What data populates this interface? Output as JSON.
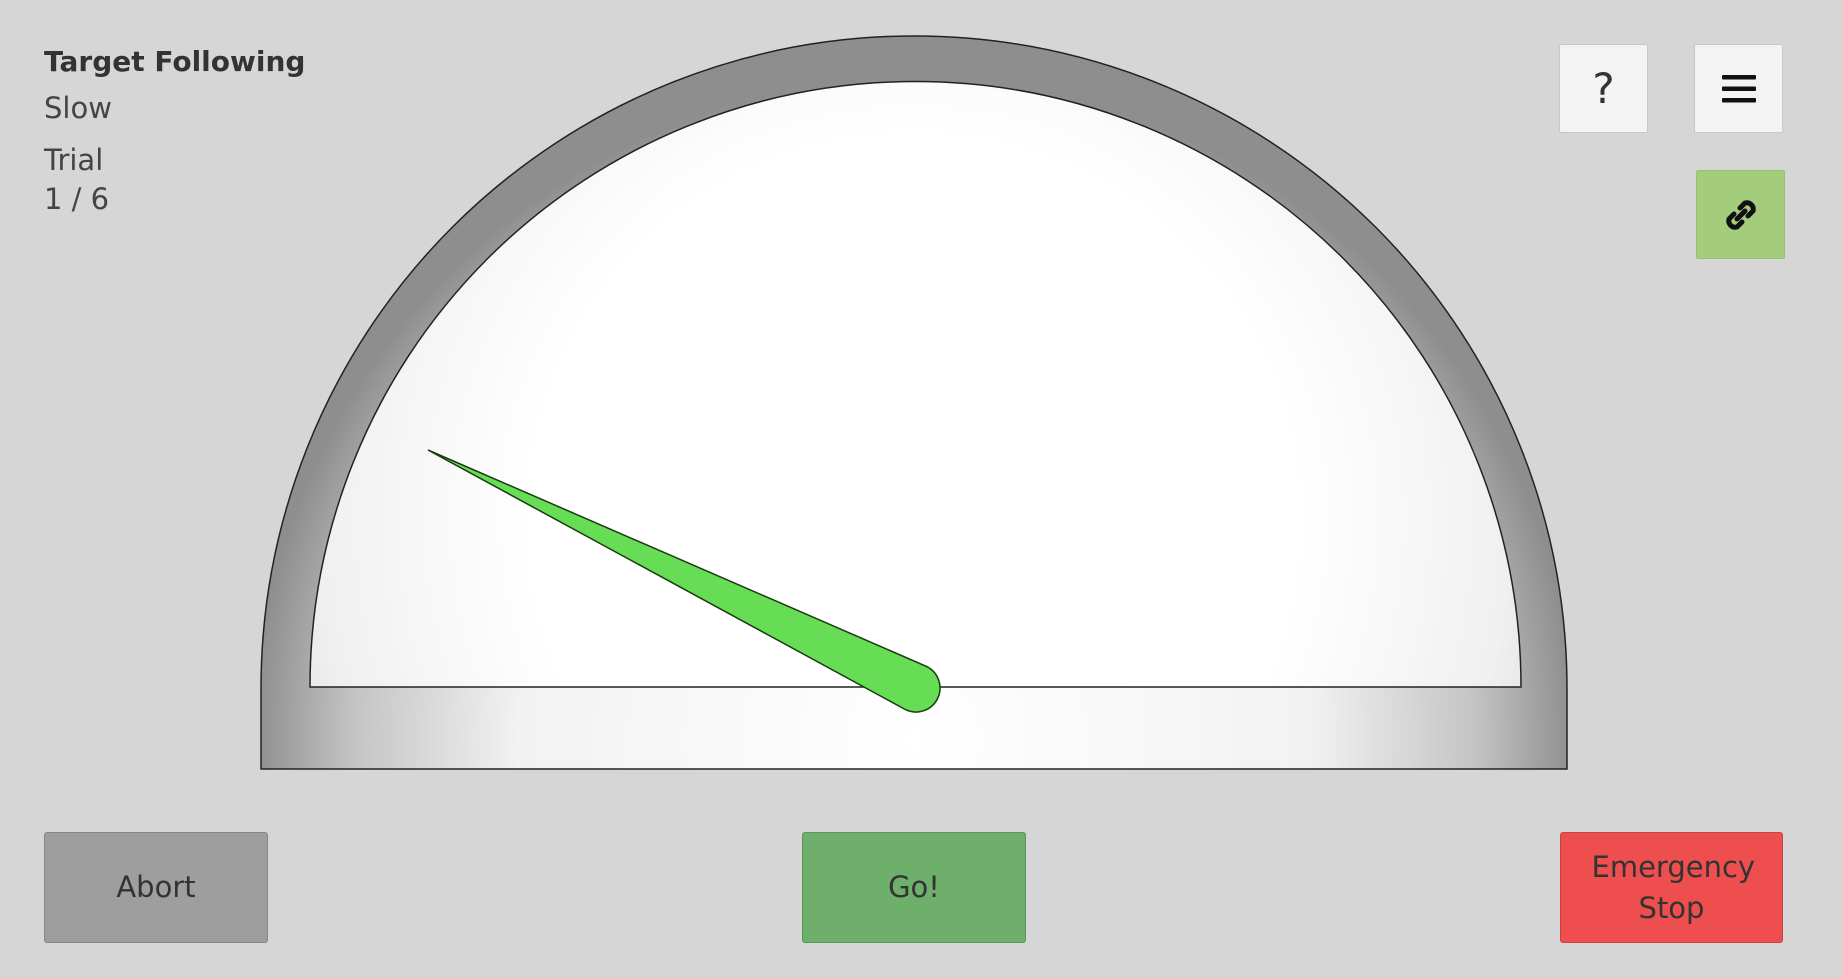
{
  "info": {
    "title": "Target Following",
    "mode": "Slow",
    "trial_label": "Trial",
    "trial_count": "1 / 6"
  },
  "toolbar": {
    "help_label": "?",
    "menu_icon": "hamburger-menu-icon",
    "link_icon": "link-icon",
    "link_color": "#a3cd7c"
  },
  "gauge": {
    "needle_color": "#66dd55",
    "needle_angle_deg": 154
  },
  "actions": {
    "abort_label": "Abort",
    "go_label": "Go!",
    "estop_label": "Emergency Stop",
    "abort_color": "#9e9e9e",
    "go_color": "#6daf6b",
    "estop_color": "#ef4e4e"
  }
}
